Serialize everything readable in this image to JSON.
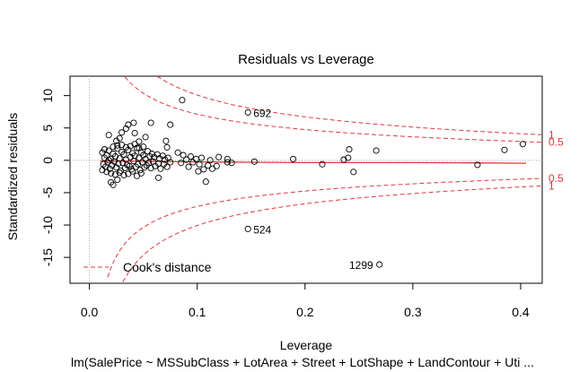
{
  "chart_data": {
    "type": "scatter",
    "title": "Residuals vs Leverage",
    "xlabel": "Leverage",
    "ylabel": "Standardized residuals",
    "subtitle": "lm(SalePrice ~ MSSubClass + LotArea + Street + LotShape + LandContour + Uti ...",
    "xlim": [
      -0.018,
      0.42
    ],
    "ylim": [
      -19,
      13
    ],
    "x_ticks": [
      0.0,
      0.1,
      0.2,
      0.3,
      0.4
    ],
    "x_tick_labels": [
      "0.0",
      "0.1",
      "0.2",
      "0.3",
      "0.4"
    ],
    "y_ticks": [
      -15,
      -10,
      -5,
      0,
      5,
      10
    ],
    "y_tick_labels": [
      "-15",
      "-10",
      "-5",
      "0",
      "5",
      "10"
    ],
    "grid": false,
    "legend": {
      "position": "bottom-left",
      "entries": [
        {
          "label": "Cook's distance",
          "style": "dashed",
          "color": "#e0383c"
        }
      ]
    },
    "colors": {
      "points": "#000000",
      "cooks": "#e0383c",
      "smooth": "#e0383c",
      "reference": "#aaaaaa"
    },
    "points": [
      {
        "x": 0.012,
        "y": 1.2
      },
      {
        "x": 0.013,
        "y": -0.6
      },
      {
        "x": 0.014,
        "y": 0.4
      },
      {
        "x": 0.015,
        "y": -1.0
      },
      {
        "x": 0.016,
        "y": 0.8
      },
      {
        "x": 0.017,
        "y": -0.3
      },
      {
        "x": 0.018,
        "y": 1.5
      },
      {
        "x": 0.019,
        "y": -1.3
      },
      {
        "x": 0.02,
        "y": 0.2
      },
      {
        "x": 0.021,
        "y": -0.8
      },
      {
        "x": 0.022,
        "y": 1.0
      },
      {
        "x": 0.023,
        "y": -0.2
      },
      {
        "x": 0.024,
        "y": 0.6
      },
      {
        "x": 0.025,
        "y": -1.1
      },
      {
        "x": 0.026,
        "y": 1.8
      },
      {
        "x": 0.027,
        "y": -0.5
      },
      {
        "x": 0.028,
        "y": 0.3
      },
      {
        "x": 0.029,
        "y": -1.6
      },
      {
        "x": 0.03,
        "y": 1.3
      },
      {
        "x": 0.031,
        "y": -0.4
      },
      {
        "x": 0.032,
        "y": 0.9
      },
      {
        "x": 0.033,
        "y": -1.2
      },
      {
        "x": 0.034,
        "y": 0.1
      },
      {
        "x": 0.035,
        "y": -0.7
      },
      {
        "x": 0.036,
        "y": 1.6
      },
      {
        "x": 0.037,
        "y": -0.9
      },
      {
        "x": 0.038,
        "y": 0.5
      },
      {
        "x": 0.039,
        "y": -1.4
      },
      {
        "x": 0.04,
        "y": 1.1
      },
      {
        "x": 0.041,
        "y": -0.1
      },
      {
        "x": 0.042,
        "y": 0.7
      },
      {
        "x": 0.043,
        "y": -1.0
      },
      {
        "x": 0.044,
        "y": 1.9
      },
      {
        "x": 0.045,
        "y": -0.6
      },
      {
        "x": 0.046,
        "y": 0.4
      },
      {
        "x": 0.047,
        "y": -1.5
      },
      {
        "x": 0.048,
        "y": 1.2
      },
      {
        "x": 0.049,
        "y": -0.3
      },
      {
        "x": 0.05,
        "y": 0.8
      },
      {
        "x": 0.051,
        "y": -1.1
      },
      {
        "x": 0.052,
        "y": 0.2
      },
      {
        "x": 0.053,
        "y": -0.8
      },
      {
        "x": 0.054,
        "y": 1.4
      },
      {
        "x": 0.055,
        "y": -0.4
      },
      {
        "x": 0.056,
        "y": 0.6
      },
      {
        "x": 0.057,
        "y": -1.2
      },
      {
        "x": 0.058,
        "y": 1.0
      },
      {
        "x": 0.059,
        "y": -0.2
      },
      {
        "x": 0.06,
        "y": 0.5
      },
      {
        "x": 0.061,
        "y": -0.9
      },
      {
        "x": 0.063,
        "y": 0.9
      },
      {
        "x": 0.064,
        "y": -0.5
      },
      {
        "x": 0.065,
        "y": 0.3
      },
      {
        "x": 0.066,
        "y": -1.3
      },
      {
        "x": 0.068,
        "y": 0.7
      },
      {
        "x": 0.069,
        "y": -0.6
      },
      {
        "x": 0.07,
        "y": 0.1
      },
      {
        "x": 0.072,
        "y": -1.0
      },
      {
        "x": 0.073,
        "y": 0.4
      },
      {
        "x": 0.075,
        "y": -0.3
      },
      {
        "x": 0.012,
        "y": -1.5
      },
      {
        "x": 0.014,
        "y": 1.7
      },
      {
        "x": 0.016,
        "y": -1.8
      },
      {
        "x": 0.018,
        "y": 0.0
      },
      {
        "x": 0.02,
        "y": -2.0
      },
      {
        "x": 0.022,
        "y": 2.1
      },
      {
        "x": 0.024,
        "y": -2.2
      },
      {
        "x": 0.026,
        "y": 2.3
      },
      {
        "x": 0.028,
        "y": -1.9
      },
      {
        "x": 0.03,
        "y": 2.4
      },
      {
        "x": 0.032,
        "y": -2.3
      },
      {
        "x": 0.034,
        "y": 2.0
      },
      {
        "x": 0.036,
        "y": -2.1
      },
      {
        "x": 0.038,
        "y": 2.2
      },
      {
        "x": 0.04,
        "y": -1.7
      },
      {
        "x": 0.042,
        "y": 2.5
      },
      {
        "x": 0.044,
        "y": -2.4
      },
      {
        "x": 0.046,
        "y": 1.9
      },
      {
        "x": 0.048,
        "y": -2.0
      },
      {
        "x": 0.05,
        "y": 2.1
      },
      {
        "x": 0.02,
        "y": -3.4
      },
      {
        "x": 0.022,
        "y": -3.8
      },
      {
        "x": 0.026,
        "y": -3.0
      },
      {
        "x": 0.018,
        "y": 3.9
      },
      {
        "x": 0.025,
        "y": 3.0
      },
      {
        "x": 0.028,
        "y": 3.4
      },
      {
        "x": 0.03,
        "y": 4.3
      },
      {
        "x": 0.034,
        "y": 4.9
      },
      {
        "x": 0.036,
        "y": 5.5
      },
      {
        "x": 0.041,
        "y": 5.8
      },
      {
        "x": 0.042,
        "y": 4.2
      },
      {
        "x": 0.046,
        "y": 2.9
      },
      {
        "x": 0.052,
        "y": 3.6
      },
      {
        "x": 0.057,
        "y": 5.8
      },
      {
        "x": 0.064,
        "y": -2.7
      },
      {
        "x": 0.071,
        "y": 3.0
      },
      {
        "x": 0.072,
        "y": 2.0
      },
      {
        "x": 0.075,
        "y": 5.5
      },
      {
        "x": 0.082,
        "y": 1.2
      },
      {
        "x": 0.085,
        "y": -0.4
      },
      {
        "x": 0.087,
        "y": 0.8
      },
      {
        "x": 0.09,
        "y": 0.1
      },
      {
        "x": 0.092,
        "y": -1.0
      },
      {
        "x": 0.094,
        "y": 0.6
      },
      {
        "x": 0.096,
        "y": -0.3
      },
      {
        "x": 0.099,
        "y": 0.2
      },
      {
        "x": 0.101,
        "y": -1.7
      },
      {
        "x": 0.102,
        "y": -0.6
      },
      {
        "x": 0.104,
        "y": 0.4
      },
      {
        "x": 0.106,
        "y": -1.4
      },
      {
        "x": 0.108,
        "y": -3.3
      },
      {
        "x": 0.11,
        "y": -0.8
      },
      {
        "x": 0.112,
        "y": 0.0
      },
      {
        "x": 0.114,
        "y": -1.3
      },
      {
        "x": 0.118,
        "y": -0.9
      },
      {
        "x": 0.12,
        "y": 0.5
      },
      {
        "x": 0.128,
        "y": -0.3
      },
      {
        "x": 0.132,
        "y": -0.4
      },
      {
        "x": 0.128,
        "y": 0.2
      },
      {
        "x": 0.153,
        "y": -0.2
      },
      {
        "x": 0.086,
        "y": 9.3
      },
      {
        "x": 0.189,
        "y": 0.2
      },
      {
        "x": 0.216,
        "y": -0.6
      },
      {
        "x": 0.236,
        "y": 0.1
      },
      {
        "x": 0.24,
        "y": 0.4
      },
      {
        "x": 0.241,
        "y": 1.7
      },
      {
        "x": 0.245,
        "y": -1.8
      },
      {
        "x": 0.266,
        "y": 1.5
      },
      {
        "x": 0.36,
        "y": -0.7
      },
      {
        "x": 0.385,
        "y": 1.6
      },
      {
        "x": 0.402,
        "y": 2.5
      }
    ],
    "labeled_points": [
      {
        "label": "692",
        "x": 0.147,
        "y": 7.4
      },
      {
        "label": "524",
        "x": 0.147,
        "y": -10.6
      },
      {
        "label": "1299",
        "x": 0.269,
        "y": -16.1
      }
    ],
    "cooks_contours": [
      {
        "level": "0.5",
        "sign": 1
      },
      {
        "level": "1",
        "sign": 1
      },
      {
        "level": "0.5",
        "sign": -1
      },
      {
        "level": "1",
        "sign": -1
      }
    ],
    "smooth_line": [
      {
        "x": 0.01,
        "y": -0.1
      },
      {
        "x": 0.05,
        "y": -0.15
      },
      {
        "x": 0.1,
        "y": -0.25
      },
      {
        "x": 0.15,
        "y": -0.3
      },
      {
        "x": 0.2,
        "y": -0.35
      },
      {
        "x": 0.25,
        "y": -0.35
      },
      {
        "x": 0.3,
        "y": -0.35
      },
      {
        "x": 0.35,
        "y": -0.4
      },
      {
        "x": 0.405,
        "y": -0.45
      }
    ]
  }
}
